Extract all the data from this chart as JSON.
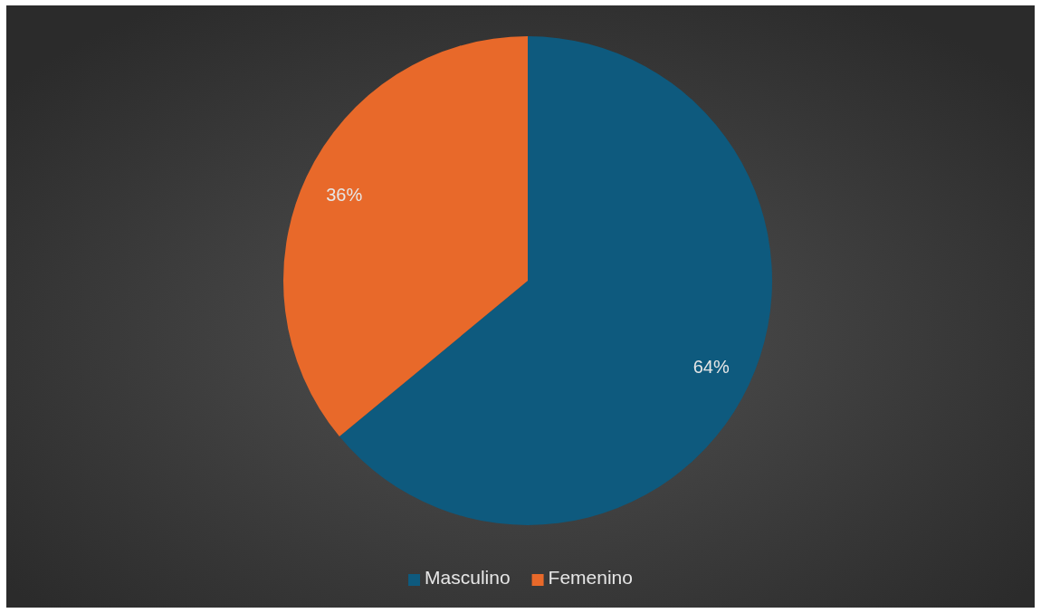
{
  "chart_data": {
    "type": "pie",
    "categories": [
      "Masculino",
      "Femenino"
    ],
    "values": [
      64,
      36
    ],
    "colors": [
      "#0e5a7e",
      "#e8692a"
    ],
    "value_labels": [
      "64%",
      "36%"
    ],
    "legend": "bottom"
  }
}
